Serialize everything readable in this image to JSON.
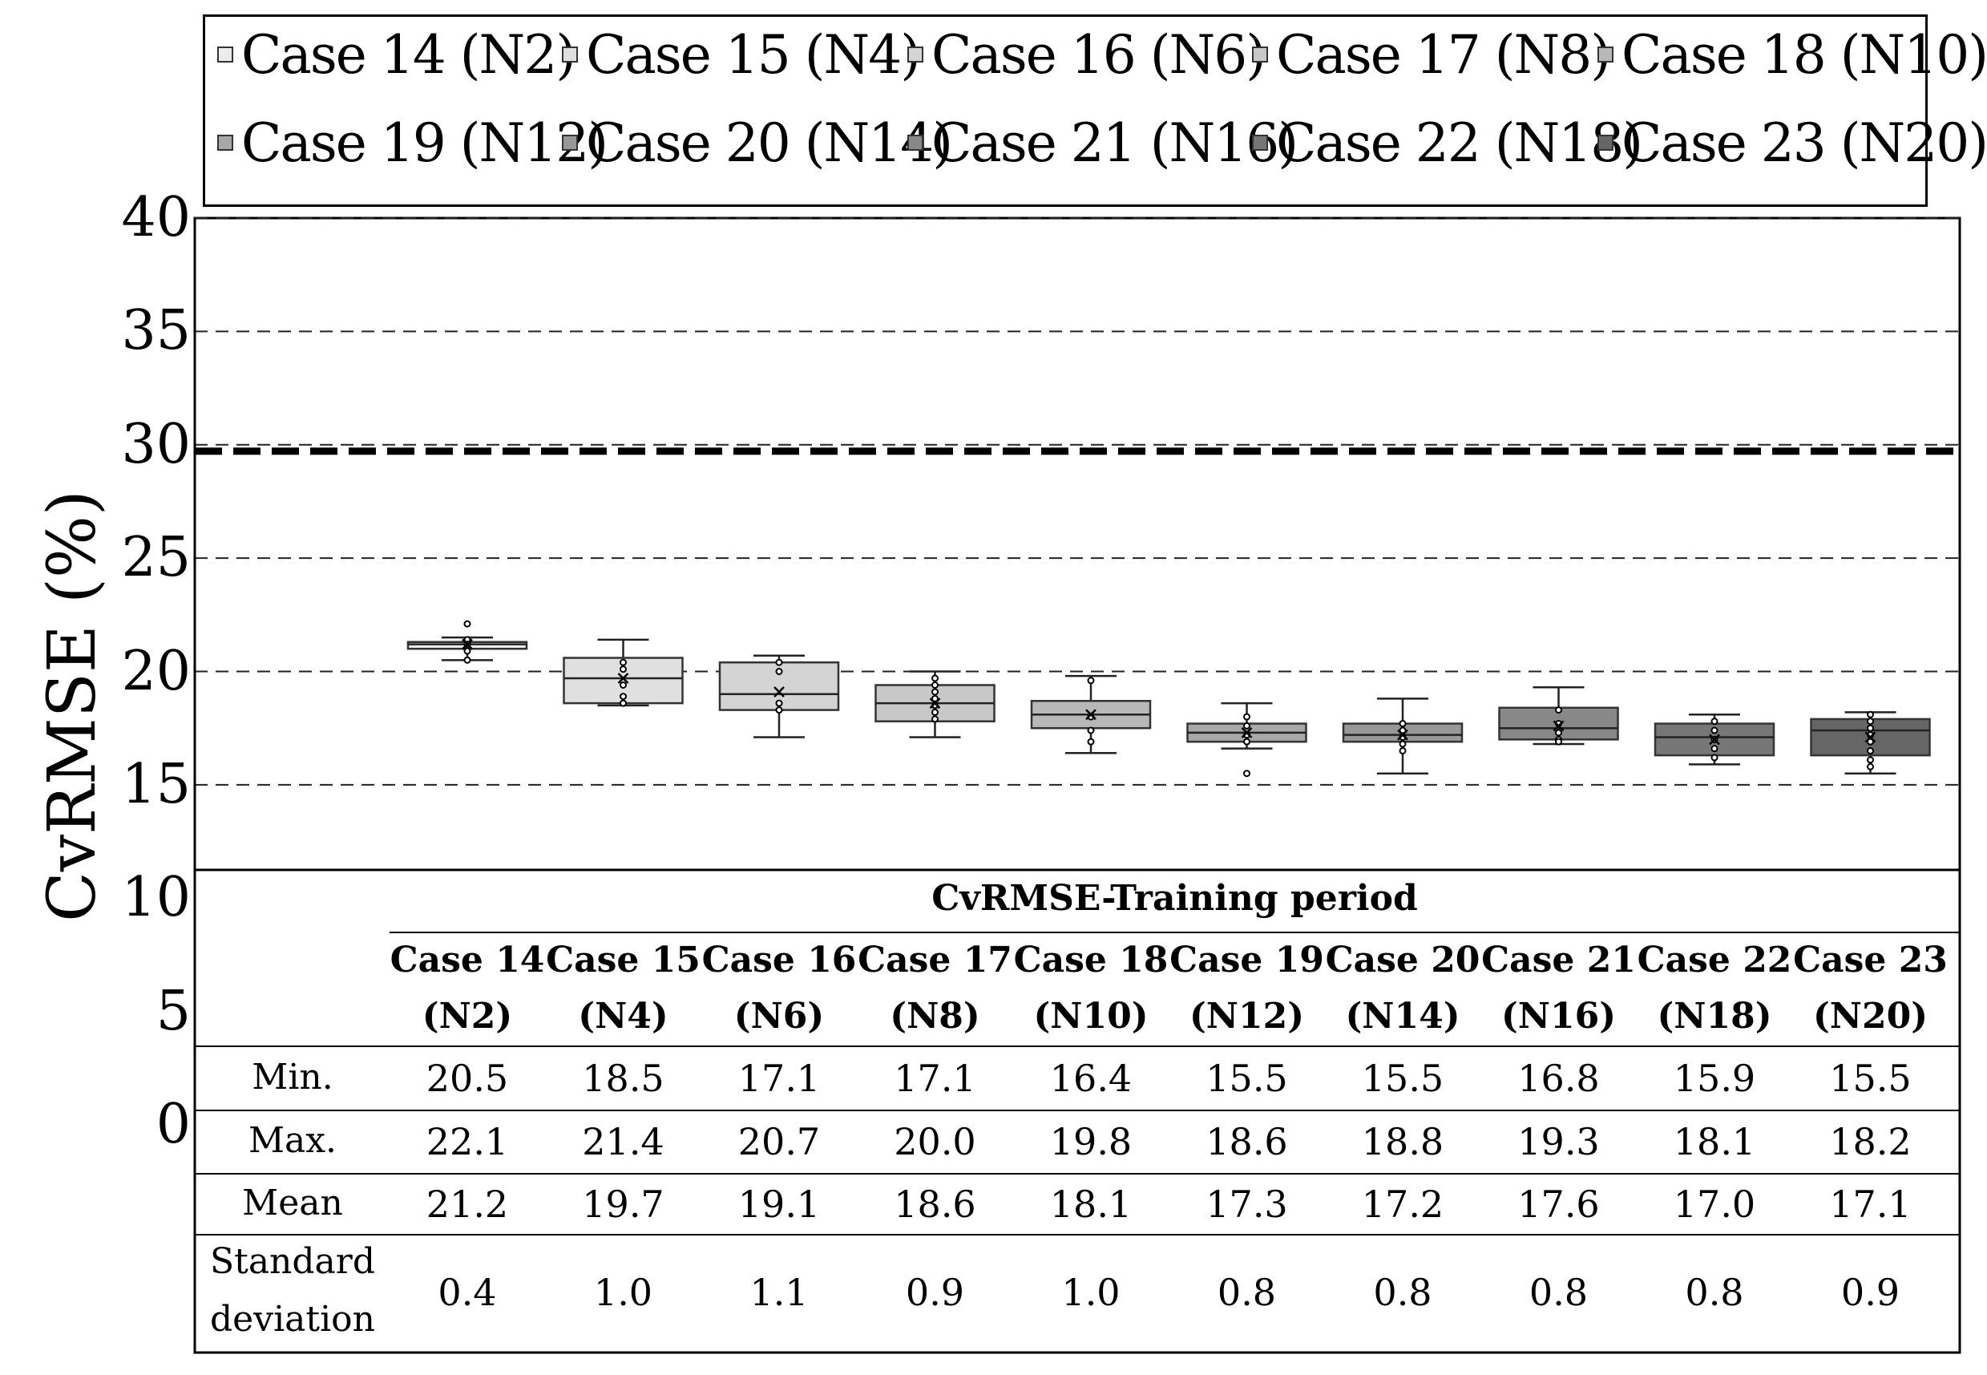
{
  "chart_data": {
    "type": "box",
    "ylabel": "CvRMSE (%)",
    "ylim": [
      0,
      40
    ],
    "yticks": [
      "0",
      "5",
      "10",
      "15",
      "20",
      "25",
      "30",
      "35",
      "40"
    ],
    "threshold_line": 30,
    "grid": "dashed-horizontal",
    "legend": {
      "position": "top",
      "entries": [
        {
          "label": "Case 14 (N2)",
          "color": "#ececec"
        },
        {
          "label": "Case 15 (N4)",
          "color": "#e0e0e0"
        },
        {
          "label": "Case 16 (N6)",
          "color": "#d4d4d4"
        },
        {
          "label": "Case 17 (N8)",
          "color": "#c8c8c8"
        },
        {
          "label": "Case 18 (N10)",
          "color": "#b8b8b8"
        },
        {
          "label": "Case 19 (N12)",
          "color": "#a8a8a8"
        },
        {
          "label": "Case 20 (N14)",
          "color": "#989898"
        },
        {
          "label": "Case 21 (N16)",
          "color": "#888888"
        },
        {
          "label": "Case 22 (N18)",
          "color": "#777777"
        },
        {
          "label": "Case 23 (N20)",
          "color": "#666666"
        }
      ]
    },
    "series": [
      {
        "name": "Case 14 (N2)",
        "color": "#ececec",
        "min": 20.5,
        "q1": 21.0,
        "median": 21.2,
        "q3": 21.3,
        "max": 21.5,
        "mean": 21.2,
        "points": [
          22.1,
          21.4,
          21.2,
          20.9,
          20.5
        ]
      },
      {
        "name": "Case 15 (N4)",
        "color": "#e0e0e0",
        "min": 18.5,
        "q1": 18.6,
        "median": 19.7,
        "q3": 20.6,
        "max": 21.4,
        "mean": 19.7,
        "points": [
          20.4,
          20.1,
          19.4,
          18.9,
          18.6
        ]
      },
      {
        "name": "Case 16 (N6)",
        "color": "#d4d4d4",
        "min": 17.1,
        "q1": 18.3,
        "median": 19.0,
        "q3": 20.4,
        "max": 20.7,
        "mean": 19.1,
        "points": [
          20.4,
          20.0,
          18.6,
          18.3
        ]
      },
      {
        "name": "Case 17 (N8)",
        "color": "#c8c8c8",
        "min": 17.1,
        "q1": 17.8,
        "median": 18.6,
        "q3": 19.4,
        "max": 20.0,
        "mean": 18.6,
        "points": [
          19.7,
          19.4,
          19.1,
          18.8,
          18.5,
          18.2,
          17.9
        ]
      },
      {
        "name": "Case 18 (N10)",
        "color": "#b8b8b8",
        "min": 16.4,
        "q1": 17.5,
        "median": 18.1,
        "q3": 18.7,
        "max": 19.8,
        "mean": 18.1,
        "points": [
          19.6,
          18.0,
          17.4,
          16.9
        ]
      },
      {
        "name": "Case 19 (N12)",
        "color": "#a8a8a8",
        "min": 16.6,
        "q1": 16.9,
        "median": 17.3,
        "q3": 17.7,
        "max": 18.6,
        "mean": 17.3,
        "points": [
          18.0,
          17.6,
          17.2,
          16.9,
          15.5
        ]
      },
      {
        "name": "Case 20 (N14)",
        "color": "#989898",
        "min": 15.5,
        "q1": 16.9,
        "median": 17.2,
        "q3": 17.7,
        "max": 18.8,
        "mean": 17.2,
        "points": [
          17.7,
          17.4,
          17.1,
          16.8,
          16.5
        ]
      },
      {
        "name": "Case 21 (N16)",
        "color": "#888888",
        "min": 16.8,
        "q1": 17.0,
        "median": 17.5,
        "q3": 18.4,
        "max": 19.3,
        "mean": 17.6,
        "points": [
          18.3,
          17.7,
          17.3,
          17.0,
          16.9
        ]
      },
      {
        "name": "Case 22 (N18)",
        "color": "#777777",
        "min": 15.9,
        "q1": 16.3,
        "median": 17.1,
        "q3": 17.7,
        "max": 18.1,
        "mean": 17.0,
        "points": [
          17.8,
          17.4,
          17.0,
          16.6,
          16.2
        ]
      },
      {
        "name": "Case 23 (N20)",
        "color": "#666666",
        "min": 15.5,
        "q1": 16.3,
        "median": 17.4,
        "q3": 17.9,
        "max": 18.2,
        "mean": 17.1,
        "points": [
          18.1,
          17.8,
          17.5,
          17.2,
          16.9,
          16.5,
          16.1,
          15.8
        ]
      }
    ]
  },
  "table": {
    "title": "CvRMSE-Training period",
    "columns": [
      {
        "case": "Case 14",
        "n": "(N2)"
      },
      {
        "case": "Case 15",
        "n": "(N4)"
      },
      {
        "case": "Case 16",
        "n": "(N6)"
      },
      {
        "case": "Case 17",
        "n": "(N8)"
      },
      {
        "case": "Case 18",
        "n": "(N10)"
      },
      {
        "case": "Case 19",
        "n": "(N12)"
      },
      {
        "case": "Case 20",
        "n": "(N14)"
      },
      {
        "case": "Case 21",
        "n": "(N16)"
      },
      {
        "case": "Case 22",
        "n": "(N18)"
      },
      {
        "case": "Case 23",
        "n": "(N20)"
      }
    ],
    "rows": [
      {
        "label": "Min.",
        "values": [
          "20.5",
          "18.5",
          "17.1",
          "17.1",
          "16.4",
          "15.5",
          "15.5",
          "16.8",
          "15.9",
          "15.5"
        ]
      },
      {
        "label": "Max.",
        "values": [
          "22.1",
          "21.4",
          "20.7",
          "20.0",
          "19.8",
          "18.6",
          "18.8",
          "19.3",
          "18.1",
          "18.2"
        ]
      },
      {
        "label": "Mean",
        "values": [
          "21.2",
          "19.7",
          "19.1",
          "18.6",
          "18.1",
          "17.3",
          "17.2",
          "17.6",
          "17.0",
          "17.1"
        ]
      },
      {
        "label_line1": "Standard",
        "label_line2": "deviation",
        "values": [
          "0.4",
          "1.0",
          "1.1",
          "0.9",
          "1.0",
          "0.8",
          "0.8",
          "0.8",
          "0.8",
          "0.9"
        ]
      }
    ]
  }
}
